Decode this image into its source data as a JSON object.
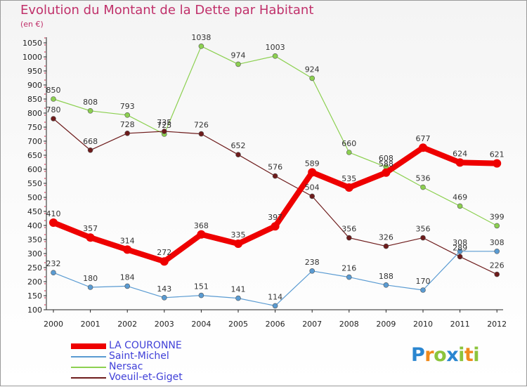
{
  "chart_data": {
    "type": "line",
    "title": "Evolution du Montant de la Dette par Habitant",
    "subtitle": "(en €)",
    "x": [
      "2000",
      "2001",
      "2002",
      "2003",
      "2004",
      "2005",
      "2006",
      "2007",
      "2008",
      "2009",
      "2010",
      "2011",
      "2012"
    ],
    "y_ticks": [
      100,
      150,
      200,
      250,
      300,
      350,
      400,
      450,
      500,
      550,
      600,
      650,
      700,
      750,
      800,
      850,
      900,
      950,
      1000,
      1050
    ],
    "ylim": [
      100,
      1050
    ],
    "grid": false,
    "legend_position": "bottom-left",
    "series": [
      {
        "name": "LA COURONNE",
        "color": "#ee0000",
        "values": [
          410,
          357,
          314,
          272,
          368,
          335,
          397,
          589,
          535,
          588,
          677,
          624,
          621
        ]
      },
      {
        "name": "Saint-Michel",
        "color": "#5a9bd2",
        "values": [
          232,
          180,
          184,
          143,
          151,
          141,
          114,
          238,
          216,
          188,
          170,
          308,
          308
        ]
      },
      {
        "name": "Nersac",
        "color": "#8cd050",
        "values": [
          850,
          808,
          793,
          725,
          1038,
          974,
          1003,
          924,
          660,
          608,
          536,
          469,
          399
        ]
      },
      {
        "name": "Voeuil-et-Giget",
        "color": "#6e1c1c",
        "values": [
          780,
          668,
          728,
          735,
          726,
          652,
          576,
          504,
          356,
          326,
          356,
          289,
          226
        ]
      }
    ]
  },
  "brand": {
    "letters": [
      "P",
      "r",
      "o",
      "x",
      "i",
      "t",
      "i"
    ],
    "colors": [
      "#2a86d0",
      "#f08a1c",
      "#8cc43c",
      "#2a86d0",
      "#8cc43c",
      "#f08a1c",
      "#8cc43c"
    ]
  }
}
